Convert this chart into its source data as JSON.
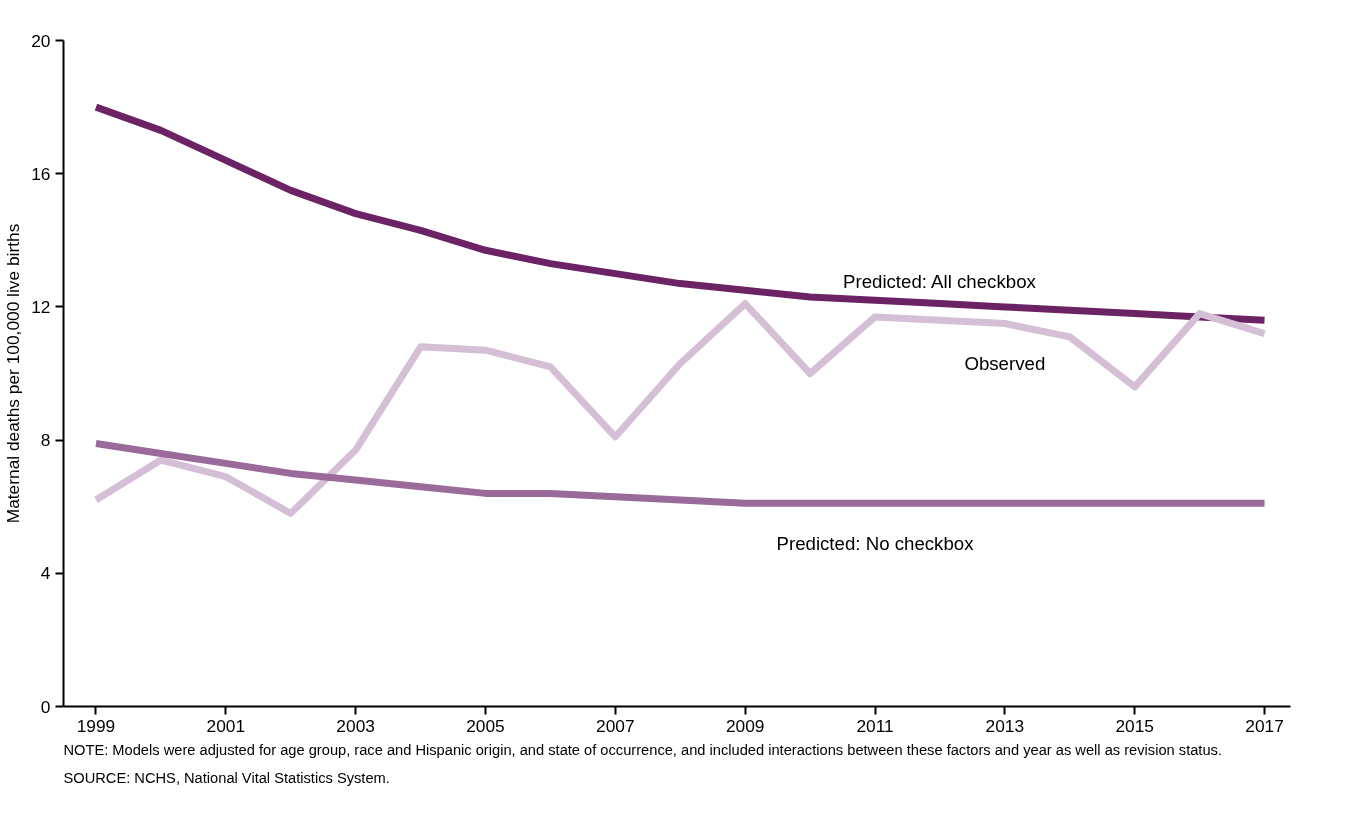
{
  "chart_data": {
    "type": "line",
    "ylabel": "Maternal deaths per 100,000 live births",
    "x": [
      1999,
      2000,
      2001,
      2002,
      2003,
      2004,
      2005,
      2006,
      2007,
      2008,
      2009,
      2010,
      2011,
      2012,
      2013,
      2014,
      2015,
      2016,
      2017
    ],
    "series": [
      {
        "name": "Predicted: All checkbox",
        "color": "#6b2366",
        "values": [
          18.0,
          17.3,
          16.4,
          15.5,
          14.8,
          14.3,
          13.7,
          13.3,
          13.0,
          12.7,
          12.5,
          12.3,
          12.2,
          12.1,
          12.0,
          11.9,
          11.8,
          11.7,
          11.6
        ]
      },
      {
        "name": "Observed",
        "color": "#d4bfd6",
        "values": [
          6.2,
          7.4,
          6.9,
          5.8,
          7.7,
          10.8,
          10.7,
          10.2,
          8.1,
          10.3,
          12.1,
          10.0,
          11.7,
          11.6,
          11.5,
          11.1,
          9.6,
          11.8,
          11.2
        ]
      },
      {
        "name": "Predicted: No checkbox",
        "color": "#9a6b9a",
        "values": [
          7.9,
          7.6,
          7.3,
          7.0,
          6.8,
          6.6,
          6.4,
          6.4,
          6.3,
          6.2,
          6.1,
          6.1,
          6.1,
          6.1,
          6.1,
          6.1,
          6.1,
          6.1,
          6.1
        ]
      }
    ],
    "xlim": [
      1998.5,
      2017.4
    ],
    "xticks": [
      1999,
      2001,
      2003,
      2005,
      2007,
      2009,
      2011,
      2013,
      2015,
      2017
    ],
    "ylim": [
      0,
      20
    ],
    "yticks": [
      0,
      4,
      8,
      12,
      16,
      20
    ],
    "grid": false,
    "marker": "none",
    "line_style": "solid",
    "annotations": [
      "NOTE: Models were adjusted for age group, race and Hispanic origin, and state of occurrence, and included interactions between these factors and year as well as revision status.",
      "SOURCE: NCHS, National Vital Statistics System."
    ]
  }
}
